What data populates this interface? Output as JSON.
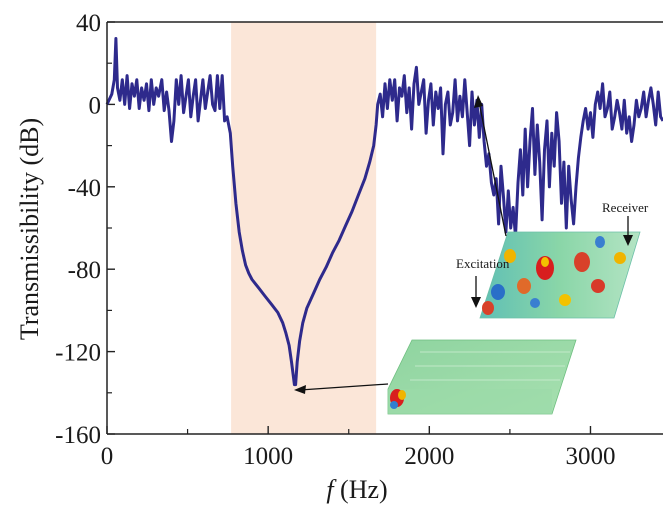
{
  "chart_data": {
    "type": "line",
    "xlabel_italic": "f",
    "xlabel_unit": " (Hz)",
    "ylabel": "Transmissibility (dB)",
    "xlim": [
      0,
      3450
    ],
    "ylim": [
      -160,
      40
    ],
    "xticks": [
      0,
      1000,
      2000,
      3000
    ],
    "xtick_labels": [
      "0",
      "1000",
      "2000",
      "3000"
    ],
    "yticks": [
      40,
      0,
      -40,
      -80,
      -120,
      -160
    ],
    "ytick_labels": [
      "40",
      "0",
      "-40",
      "-80",
      "-120",
      "-160"
    ],
    "grid": false,
    "band_gap": {
      "x_start": 770,
      "x_end": 1670,
      "color": "#fbe6d8"
    },
    "series": [
      {
        "color": "#2e2a8c",
        "points": [
          [
            0,
            0
          ],
          [
            30,
            5
          ],
          [
            45,
            12
          ],
          [
            55,
            32
          ],
          [
            65,
            8
          ],
          [
            80,
            2
          ],
          [
            95,
            12
          ],
          [
            110,
            0
          ],
          [
            125,
            14
          ],
          [
            140,
            -2
          ],
          [
            155,
            10
          ],
          [
            170,
            4
          ],
          [
            185,
            12
          ],
          [
            200,
            -2
          ],
          [
            215,
            8
          ],
          [
            230,
            2
          ],
          [
            245,
            10
          ],
          [
            260,
            -3
          ],
          [
            275,
            12
          ],
          [
            290,
            0
          ],
          [
            305,
            8
          ],
          [
            320,
            4
          ],
          [
            340,
            12
          ],
          [
            355,
            -3
          ],
          [
            370,
            6
          ],
          [
            385,
            -3
          ],
          [
            400,
            -18
          ],
          [
            415,
            -8
          ],
          [
            430,
            12
          ],
          [
            445,
            0
          ],
          [
            460,
            14
          ],
          [
            475,
            -4
          ],
          [
            490,
            4
          ],
          [
            505,
            12
          ],
          [
            520,
            -6
          ],
          [
            535,
            4
          ],
          [
            550,
            12
          ],
          [
            565,
            -8
          ],
          [
            580,
            2
          ],
          [
            595,
            12
          ],
          [
            610,
            -2
          ],
          [
            625,
            6
          ],
          [
            640,
            14
          ],
          [
            655,
            0
          ],
          [
            670,
            -3
          ],
          [
            685,
            14
          ],
          [
            700,
            -2
          ],
          [
            715,
            14
          ],
          [
            730,
            -8
          ],
          [
            745,
            -6
          ],
          [
            755,
            -10
          ],
          [
            765,
            -14
          ],
          [
            780,
            -30
          ],
          [
            800,
            -48
          ],
          [
            820,
            -62
          ],
          [
            840,
            -71
          ],
          [
            860,
            -78
          ],
          [
            880,
            -82
          ],
          [
            900,
            -85
          ],
          [
            940,
            -89
          ],
          [
            980,
            -93
          ],
          [
            1020,
            -97
          ],
          [
            1060,
            -101
          ],
          [
            1090,
            -106
          ],
          [
            1110,
            -111
          ],
          [
            1130,
            -117
          ],
          [
            1145,
            -125
          ],
          [
            1155,
            -131
          ],
          [
            1163,
            -136
          ],
          [
            1170,
            -136
          ],
          [
            1180,
            -125
          ],
          [
            1195,
            -115
          ],
          [
            1215,
            -106
          ],
          [
            1240,
            -99
          ],
          [
            1280,
            -92
          ],
          [
            1320,
            -85
          ],
          [
            1360,
            -79
          ],
          [
            1400,
            -72
          ],
          [
            1440,
            -66
          ],
          [
            1480,
            -59
          ],
          [
            1520,
            -52
          ],
          [
            1560,
            -44
          ],
          [
            1600,
            -36
          ],
          [
            1630,
            -28
          ],
          [
            1655,
            -20
          ],
          [
            1670,
            -10
          ],
          [
            1680,
            0
          ],
          [
            1695,
            5
          ],
          [
            1710,
            -6
          ],
          [
            1725,
            10
          ],
          [
            1740,
            -2
          ],
          [
            1755,
            12
          ],
          [
            1770,
            2
          ],
          [
            1785,
            12
          ],
          [
            1800,
            -8
          ],
          [
            1815,
            8
          ],
          [
            1830,
            4
          ],
          [
            1845,
            14
          ],
          [
            1860,
            -4
          ],
          [
            1875,
            8
          ],
          [
            1890,
            -12
          ],
          [
            1905,
            10
          ],
          [
            1920,
            18
          ],
          [
            1935,
            0
          ],
          [
            1950,
            6
          ],
          [
            1965,
            12
          ],
          [
            1980,
            -14
          ],
          [
            1995,
            2
          ],
          [
            2010,
            10
          ],
          [
            2025,
            -10
          ],
          [
            2040,
            6
          ],
          [
            2055,
            -2
          ],
          [
            2070,
            8
          ],
          [
            2085,
            -24
          ],
          [
            2100,
            0
          ],
          [
            2115,
            6
          ],
          [
            2130,
            -10
          ],
          [
            2145,
            -4
          ],
          [
            2160,
            12
          ],
          [
            2175,
            -8
          ],
          [
            2190,
            4
          ],
          [
            2205,
            -6
          ],
          [
            2220,
            12
          ],
          [
            2235,
            -4
          ],
          [
            2250,
            -20
          ],
          [
            2265,
            6
          ],
          [
            2280,
            -10
          ],
          [
            2295,
            2
          ],
          [
            2310,
            -16
          ],
          [
            2325,
            0
          ],
          [
            2340,
            -18
          ],
          [
            2355,
            -30
          ],
          [
            2370,
            -24
          ],
          [
            2385,
            -38
          ],
          [
            2400,
            -44
          ],
          [
            2415,
            -36
          ],
          [
            2430,
            -58
          ],
          [
            2445,
            -30
          ],
          [
            2460,
            -45
          ],
          [
            2475,
            -62
          ],
          [
            2490,
            -42
          ],
          [
            2505,
            -60
          ],
          [
            2520,
            -50
          ],
          [
            2535,
            -64
          ],
          [
            2550,
            -38
          ],
          [
            2565,
            -22
          ],
          [
            2580,
            -44
          ],
          [
            2595,
            -12
          ],
          [
            2610,
            -40
          ],
          [
            2625,
            -18
          ],
          [
            2640,
            -2
          ],
          [
            2655,
            -34
          ],
          [
            2670,
            -10
          ],
          [
            2685,
            -28
          ],
          [
            2700,
            -56
          ],
          [
            2715,
            -22
          ],
          [
            2730,
            -8
          ],
          [
            2745,
            -40
          ],
          [
            2760,
            -14
          ],
          [
            2775,
            -30
          ],
          [
            2790,
            -4
          ],
          [
            2805,
            -18
          ],
          [
            2820,
            -48
          ],
          [
            2835,
            -28
          ],
          [
            2850,
            -60
          ],
          [
            2865,
            -30
          ],
          [
            2880,
            -46
          ],
          [
            2895,
            -58
          ],
          [
            2910,
            -40
          ],
          [
            2925,
            -26
          ],
          [
            2940,
            -16
          ],
          [
            2955,
            -8
          ],
          [
            2970,
            -2
          ],
          [
            2985,
            -12
          ],
          [
            3000,
            -4
          ],
          [
            3015,
            -16
          ],
          [
            3030,
            0
          ],
          [
            3045,
            6
          ],
          [
            3060,
            -2
          ],
          [
            3075,
            10
          ],
          [
            3090,
            -6
          ],
          [
            3105,
            -2
          ],
          [
            3120,
            6
          ],
          [
            3135,
            -12
          ],
          [
            3150,
            -6
          ],
          [
            3165,
            2
          ],
          [
            3180,
            -4
          ],
          [
            3195,
            -12
          ],
          [
            3210,
            2
          ],
          [
            3225,
            -14
          ],
          [
            3240,
            -6
          ],
          [
            3255,
            -18
          ],
          [
            3270,
            -10
          ],
          [
            3285,
            2
          ],
          [
            3300,
            -6
          ],
          [
            3315,
            -2
          ],
          [
            3330,
            6
          ],
          [
            3345,
            -6
          ],
          [
            3360,
            2
          ],
          [
            3375,
            8
          ],
          [
            3390,
            0
          ],
          [
            3405,
            -10
          ],
          [
            3420,
            6
          ],
          [
            3435,
            -6
          ],
          [
            3450,
            -8
          ]
        ]
      }
    ],
    "annotations": [
      {
        "text": "Excitation"
      },
      {
        "text": "Receiver"
      }
    ]
  }
}
